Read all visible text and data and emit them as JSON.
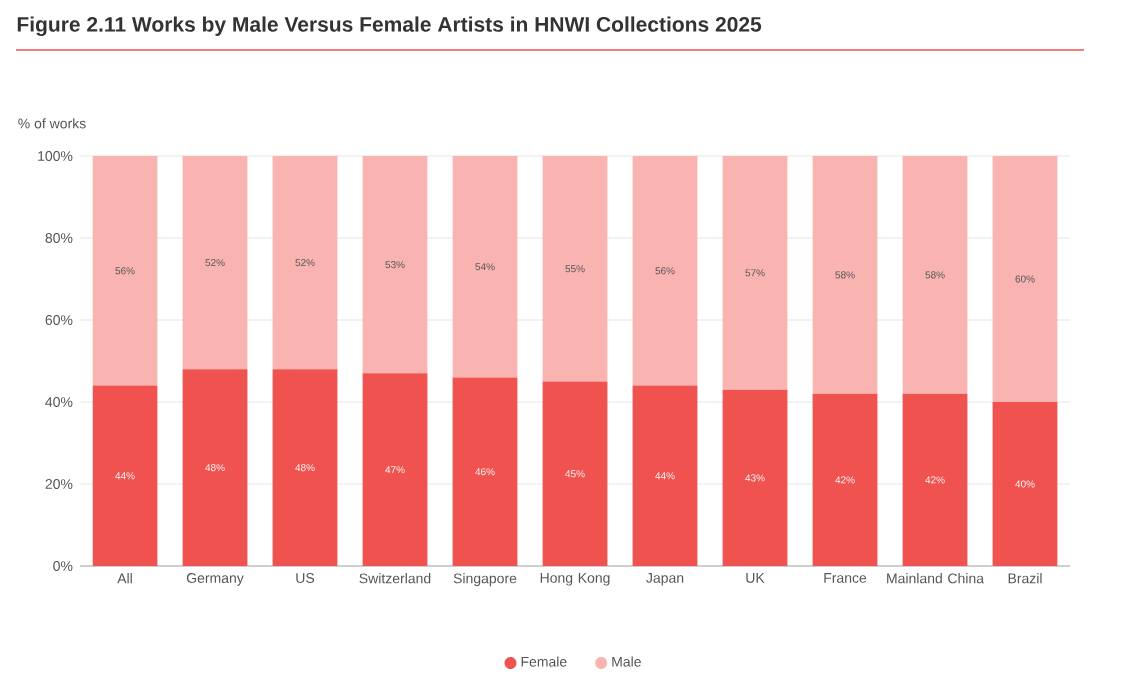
{
  "chart_data": {
    "type": "bar",
    "stacked": true,
    "title": "Figure 2.11 Works by Male Versus Female Artists in HNWI Collections 2025",
    "ylabel": "% of works",
    "categories": [
      "All",
      "Germany",
      "US",
      "Switzerland",
      "Singapore",
      "Hong Kong",
      "Japan",
      "UK",
      "France",
      "Mainland China",
      "Brazil"
    ],
    "series": [
      {
        "name": "Female",
        "color": "#f0524f",
        "values": [
          44,
          48,
          48,
          47,
          46,
          45,
          44,
          43,
          42,
          42,
          40
        ],
        "value_labels": [
          "44%",
          "48%",
          "48%",
          "47%",
          "46%",
          "45%",
          "44%",
          "43%",
          "42%",
          "42%",
          "40%"
        ]
      },
      {
        "name": "Male",
        "color": "#f9b4b2",
        "values": [
          56,
          52,
          52,
          53,
          54,
          55,
          56,
          57,
          58,
          58,
          60
        ],
        "value_labels": [
          "56%",
          "52%",
          "52%",
          "53%",
          "54%",
          "55%",
          "56%",
          "57%",
          "58%",
          "58%",
          "60%"
        ]
      }
    ],
    "ylim": [
      0,
      100
    ],
    "yticks": [
      {
        "value": 0,
        "label": "0%"
      },
      {
        "value": 20,
        "label": "20%"
      },
      {
        "value": 40,
        "label": "40%"
      },
      {
        "value": 60,
        "label": "60%"
      },
      {
        "value": 80,
        "label": "80%"
      },
      {
        "value": 100,
        "label": "100%"
      }
    ],
    "grid": "y",
    "legend": "bottom"
  }
}
